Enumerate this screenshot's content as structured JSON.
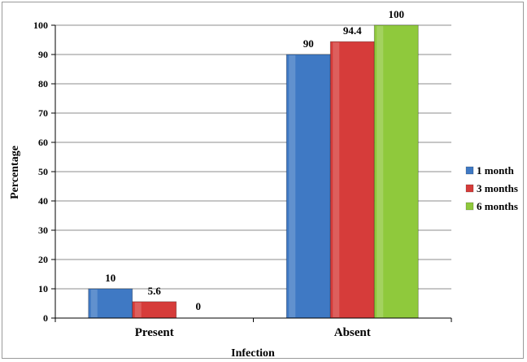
{
  "chart_data": {
    "type": "bar",
    "title": "",
    "xlabel": "Infection",
    "ylabel": "Percentage",
    "categories": [
      "Present",
      "Absent"
    ],
    "series": [
      {
        "name": "1 month",
        "values": [
          10,
          90
        ],
        "color": "#3f79c4"
      },
      {
        "name": "3 months",
        "values": [
          5.6,
          94.4
        ],
        "color": "#d63c3a"
      },
      {
        "name": "6 months",
        "values": [
          0,
          100
        ],
        "color": "#8fc93c"
      }
    ],
    "data_labels": [
      [
        "10",
        "90"
      ],
      [
        "5.6",
        "94.4"
      ],
      [
        "0",
        "100"
      ]
    ],
    "ylim": [
      0,
      100
    ],
    "yticks": [
      "0",
      "10",
      "20",
      "30",
      "40",
      "50",
      "60",
      "70",
      "80",
      "90",
      "100"
    ],
    "grid": true,
    "legend": "right"
  }
}
